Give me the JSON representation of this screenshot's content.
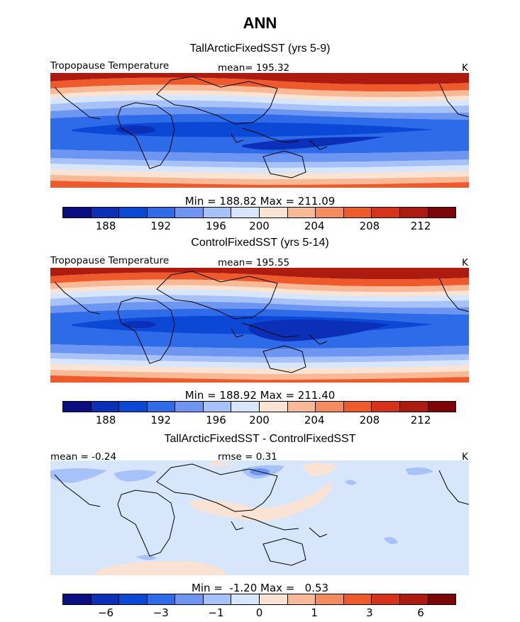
{
  "title": "ANN",
  "colorbar_colors": [
    "#0a0e80",
    "#0b2fb6",
    "#0b48d6",
    "#2d6be9",
    "#6d95f2",
    "#a7c2f8",
    "#d7e6fb",
    "#fbe3d4",
    "#f8b996",
    "#f48c5e",
    "#ef5a2c",
    "#d7331a",
    "#ad1a10",
    "#7d0507"
  ],
  "panels": [
    {
      "title": "TallArcticFixedSST (yrs 5-9)",
      "left_label": "Tropopause Temperature",
      "mean_label": "mean= 195.32",
      "unit": "K",
      "minmax": "Min = 188.82 Max = 211.09",
      "ticks": [
        "188",
        "192",
        "196",
        "200",
        "204",
        "208",
        "212"
      ]
    },
    {
      "title": "ControlFixedSST (yrs 5-14)",
      "left_label": "Tropopause Temperature",
      "mean_label": "mean= 195.55",
      "unit": "K",
      "minmax": "Min = 188.92 Max = 211.40",
      "ticks": [
        "188",
        "192",
        "196",
        "200",
        "204",
        "208",
        "212"
      ]
    },
    {
      "title": "TallArcticFixedSST - ControlFixedSST",
      "left_label": "mean =  -0.24",
      "mean_label": "rmse =   0.31",
      "unit": "K",
      "minmax": "Min =  -1.20 Max =   0.53",
      "ticks": [
        "−6",
        "−3",
        "−1",
        "0",
        "1",
        "3",
        "6"
      ]
    }
  ]
}
